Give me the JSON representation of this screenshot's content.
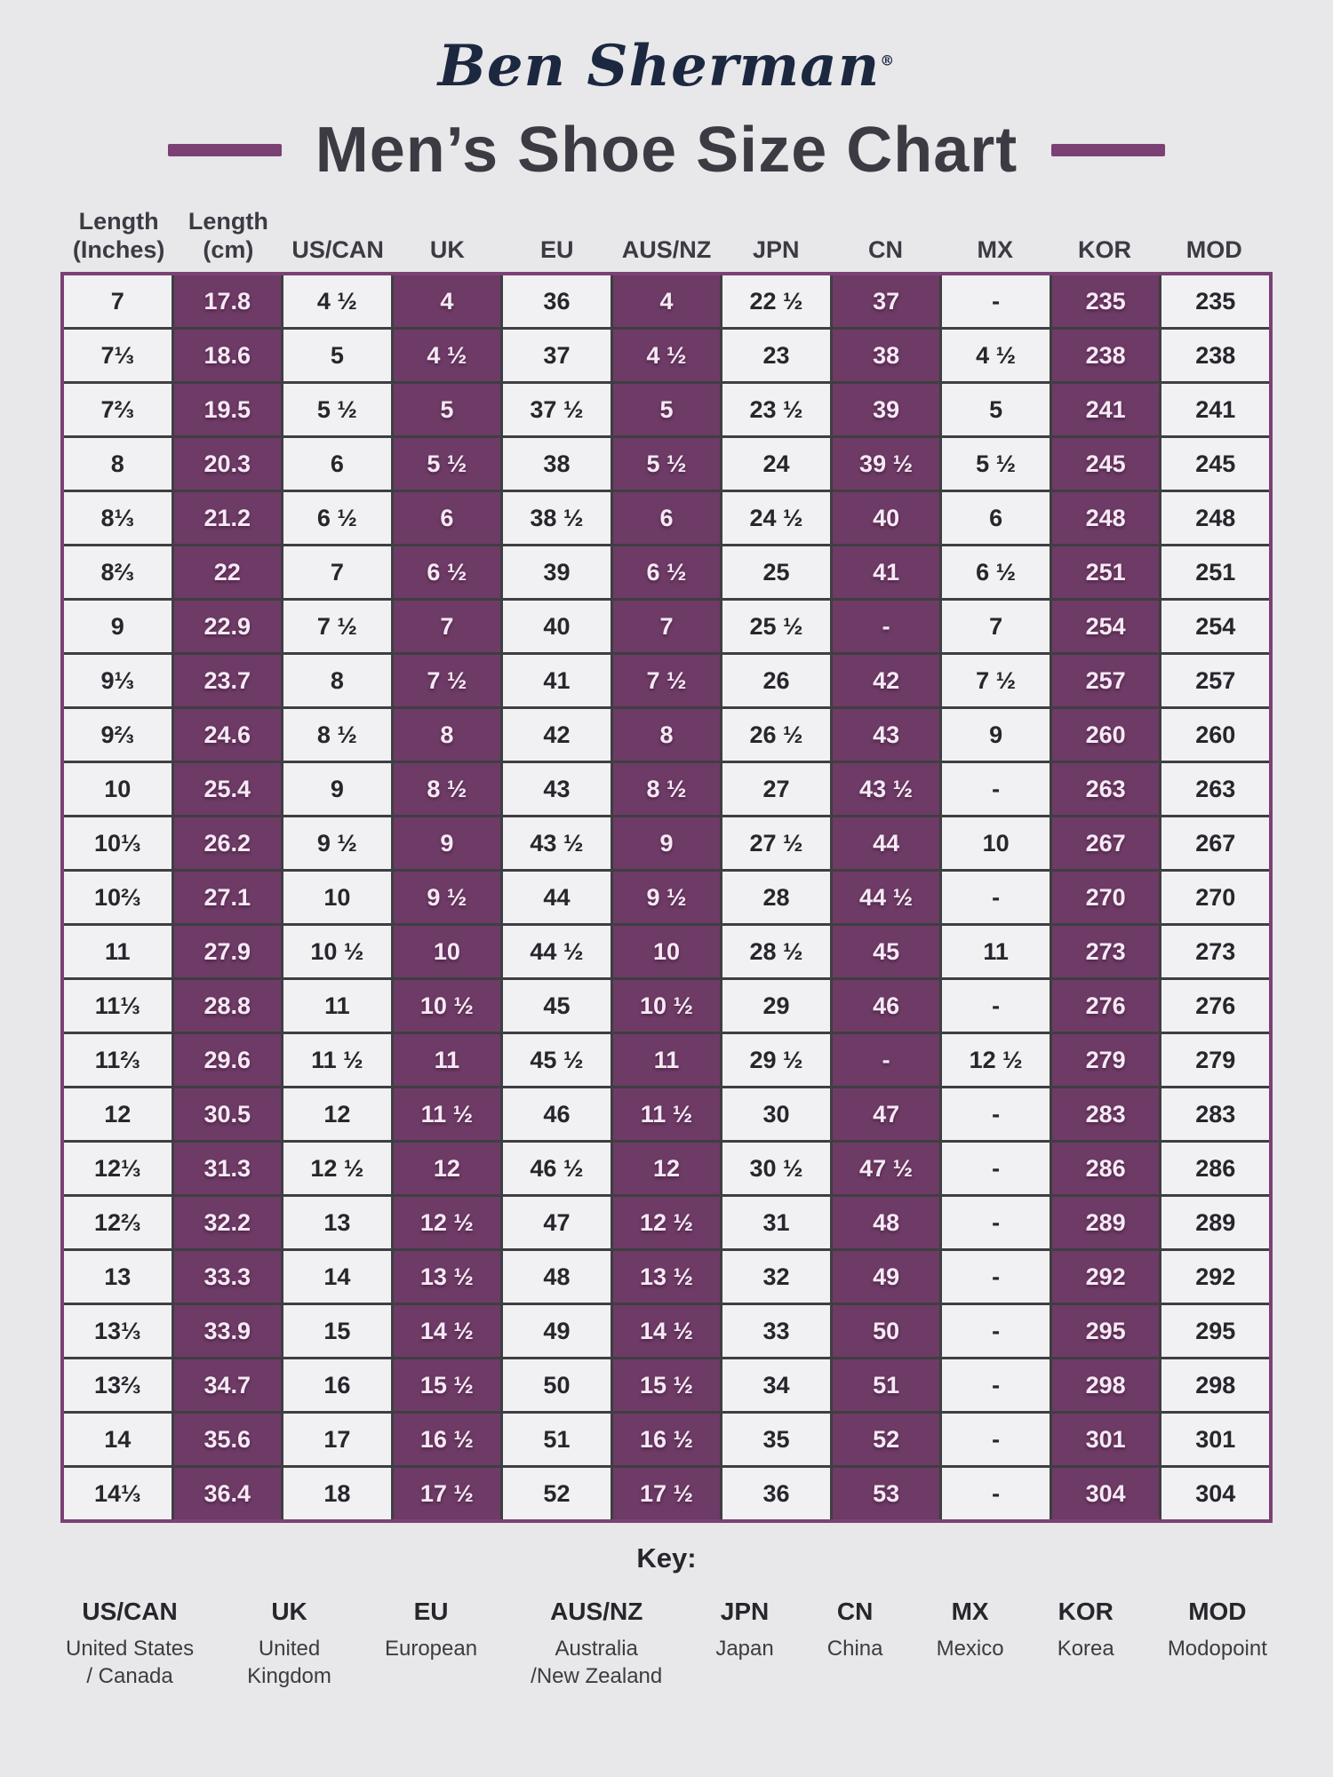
{
  "brand": {
    "logo_text": "Ben Sherman",
    "logo_mark": "®"
  },
  "page": {
    "title": "Men’s Shoe Size Chart"
  },
  "colors": {
    "column_purple": "#6d3b65",
    "table_outer_border": "#7b4174",
    "table_grid_line": "#3f3e42",
    "page_background": "#e8e7e9",
    "cell_background": "#f1f0f2",
    "dark_text": "#26262c",
    "light_text": "#f6e9f5",
    "logo_navy": "#1b2840",
    "title_text": "#3c3b43"
  },
  "table": {
    "columns": [
      {
        "label": "Length",
        "sub": "(Inches)",
        "shaded": false
      },
      {
        "label": "Length",
        "sub": "(cm)",
        "shaded": true
      },
      {
        "label": "US/CAN",
        "sub": "",
        "shaded": false
      },
      {
        "label": "UK",
        "sub": "",
        "shaded": true
      },
      {
        "label": "EU",
        "sub": "",
        "shaded": false
      },
      {
        "label": "AUS/NZ",
        "sub": "",
        "shaded": true
      },
      {
        "label": "JPN",
        "sub": "",
        "shaded": false
      },
      {
        "label": "CN",
        "sub": "",
        "shaded": true
      },
      {
        "label": "MX",
        "sub": "",
        "shaded": false
      },
      {
        "label": "KOR",
        "sub": "",
        "shaded": true
      },
      {
        "label": "MOD",
        "sub": "",
        "shaded": false
      }
    ]
  },
  "chart_data": {
    "type": "table",
    "title": "Men’s Shoe Size Chart",
    "columns": [
      "Length (Inches)",
      "Length (cm)",
      "US/CAN",
      "UK",
      "EU",
      "AUS/NZ",
      "JPN",
      "CN",
      "MX",
      "KOR",
      "MOD"
    ],
    "rows": [
      [
        "7",
        "17.8",
        "4 ½",
        "4",
        "36",
        "4",
        "22 ½",
        "37",
        "-",
        "235",
        "235"
      ],
      [
        "7⅓",
        "18.6",
        "5",
        "4 ½",
        "37",
        "4 ½",
        "23",
        "38",
        "4 ½",
        "238",
        "238"
      ],
      [
        "7⅔",
        "19.5",
        "5 ½",
        "5",
        "37 ½",
        "5",
        "23 ½",
        "39",
        "5",
        "241",
        "241"
      ],
      [
        "8",
        "20.3",
        "6",
        "5 ½",
        "38",
        "5 ½",
        "24",
        "39 ½",
        "5 ½",
        "245",
        "245"
      ],
      [
        "8⅓",
        "21.2",
        "6 ½",
        "6",
        "38 ½",
        "6",
        "24 ½",
        "40",
        "6",
        "248",
        "248"
      ],
      [
        "8⅔",
        "22",
        "7",
        "6 ½",
        "39",
        "6 ½",
        "25",
        "41",
        "6 ½",
        "251",
        "251"
      ],
      [
        "9",
        "22.9",
        "7 ½",
        "7",
        "40",
        "7",
        "25 ½",
        "-",
        "7",
        "254",
        "254"
      ],
      [
        "9⅓",
        "23.7",
        "8",
        "7 ½",
        "41",
        "7 ½",
        "26",
        "42",
        "7 ½",
        "257",
        "257"
      ],
      [
        "9⅔",
        "24.6",
        "8 ½",
        "8",
        "42",
        "8",
        "26 ½",
        "43",
        "9",
        "260",
        "260"
      ],
      [
        "10",
        "25.4",
        "9",
        "8 ½",
        "43",
        "8 ½",
        "27",
        "43 ½",
        "-",
        "263",
        "263"
      ],
      [
        "10⅓",
        "26.2",
        "9 ½",
        "9",
        "43 ½",
        "9",
        "27 ½",
        "44",
        "10",
        "267",
        "267"
      ],
      [
        "10⅔",
        "27.1",
        "10",
        "9 ½",
        "44",
        "9 ½",
        "28",
        "44 ½",
        "-",
        "270",
        "270"
      ],
      [
        "11",
        "27.9",
        "10 ½",
        "10",
        "44 ½",
        "10",
        "28 ½",
        "45",
        "11",
        "273",
        "273"
      ],
      [
        "11⅓",
        "28.8",
        "11",
        "10 ½",
        "45",
        "10 ½",
        "29",
        "46",
        "-",
        "276",
        "276"
      ],
      [
        "11⅔",
        "29.6",
        "11 ½",
        "11",
        "45 ½",
        "11",
        "29 ½",
        "-",
        "12 ½",
        "279",
        "279"
      ],
      [
        "12",
        "30.5",
        "12",
        "11 ½",
        "46",
        "11 ½",
        "30",
        "47",
        "-",
        "283",
        "283"
      ],
      [
        "12⅓",
        "31.3",
        "12 ½",
        "12",
        "46 ½",
        "12",
        "30 ½",
        "47 ½",
        "-",
        "286",
        "286"
      ],
      [
        "12⅔",
        "32.2",
        "13",
        "12 ½",
        "47",
        "12 ½",
        "31",
        "48",
        "-",
        "289",
        "289"
      ],
      [
        "13",
        "33.3",
        "14",
        "13 ½",
        "48",
        "13 ½",
        "32",
        "49",
        "-",
        "292",
        "292"
      ],
      [
        "13⅓",
        "33.9",
        "15",
        "14 ½",
        "49",
        "14 ½",
        "33",
        "50",
        "-",
        "295",
        "295"
      ],
      [
        "13⅔",
        "34.7",
        "16",
        "15 ½",
        "50",
        "15 ½",
        "34",
        "51",
        "-",
        "298",
        "298"
      ],
      [
        "14",
        "35.6",
        "17",
        "16 ½",
        "51",
        "16 ½",
        "35",
        "52",
        "-",
        "301",
        "301"
      ],
      [
        "14⅓",
        "36.4",
        "18",
        "17 ½",
        "52",
        "17 ½",
        "36",
        "53",
        "-",
        "304",
        "304"
      ]
    ]
  },
  "key": {
    "title": "Key:",
    "items": [
      {
        "abbr": "US/CAN",
        "desc": "United States\n/ Canada"
      },
      {
        "abbr": "UK",
        "desc": "United\nKingdom"
      },
      {
        "abbr": "EU",
        "desc": "European"
      },
      {
        "abbr": "AUS/NZ",
        "desc": "Australia\n/New Zealand"
      },
      {
        "abbr": "JPN",
        "desc": "Japan"
      },
      {
        "abbr": "CN",
        "desc": "China"
      },
      {
        "abbr": "MX",
        "desc": "Mexico"
      },
      {
        "abbr": "KOR",
        "desc": "Korea"
      },
      {
        "abbr": "MOD",
        "desc": "Modopoint"
      }
    ]
  }
}
